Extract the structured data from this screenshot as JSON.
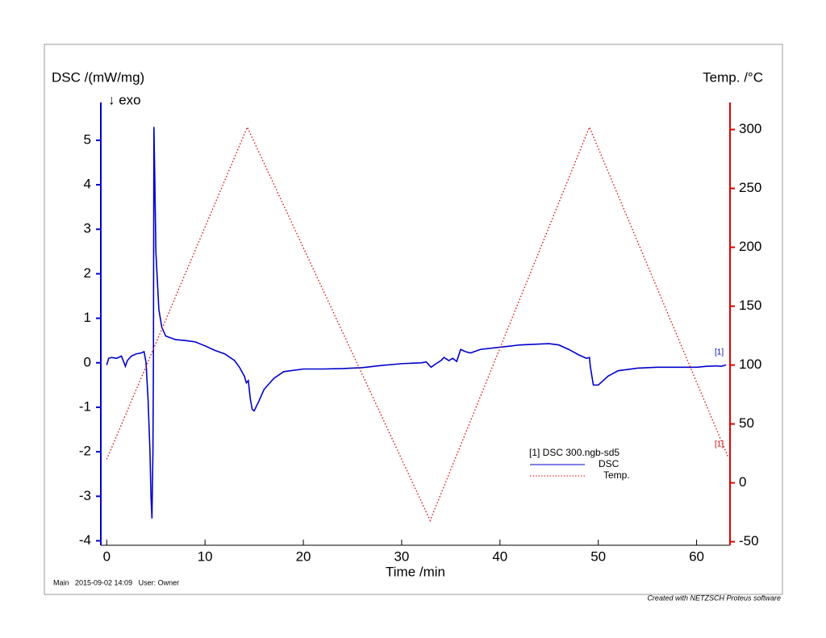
{
  "chart_data": {
    "type": "line",
    "y_label": "DSC /(mW/mg)",
    "y2_label": "Temp. /°C",
    "x_label": "Time /min",
    "annotation": "↓ exo",
    "legend_title": "[1] DSC 300.ngb-sd5",
    "curve_labels": [
      "[1]",
      "[1]"
    ],
    "footer": "Main   2015-09-02 14:09   User: Owner",
    "credit": "Created with NETZSCH Proteus software",
    "xlim": [
      -0.6,
      63.4
    ],
    "xticks": [
      0,
      10,
      20,
      30,
      40,
      50,
      60
    ],
    "ylim": [
      -4.1,
      5.85
    ],
    "yticks": [
      -4,
      -3,
      -2,
      -1,
      0,
      1,
      2,
      3,
      4,
      5
    ],
    "y2lim": [
      -53,
      323
    ],
    "y2ticks": [
      -50,
      0,
      50,
      100,
      150,
      200,
      250,
      300
    ],
    "series": [
      {
        "name": "DSC",
        "color": "#0000cc",
        "style": "solid",
        "x": [
          0,
          0.2,
          0.5,
          1,
          1.5,
          1.9,
          2.1,
          2.5,
          3,
          3.5,
          3.8,
          4.0,
          4.2,
          4.4,
          4.5,
          4.6,
          4.7,
          4.75,
          4.8,
          4.9,
          5.0,
          5.3,
          5.6,
          6,
          7,
          8,
          9,
          10,
          11,
          12,
          13,
          13.5,
          14,
          14.2,
          14.4,
          14.6,
          14.8,
          15,
          15.5,
          16,
          17,
          18,
          20,
          22,
          24,
          26,
          28,
          30,
          32,
          32.5,
          33,
          33.5,
          34,
          34.3,
          34.8,
          35.2,
          35.6,
          36,
          36.5,
          37,
          38,
          40,
          42,
          44,
          45,
          46,
          47,
          48,
          48.8,
          49.1,
          49.2,
          49.5,
          50,
          51,
          52,
          54,
          56,
          60,
          61,
          62,
          62.5,
          63
        ],
        "values": [
          -0.05,
          0.1,
          0.12,
          0.1,
          0.15,
          -0.08,
          0.05,
          0.15,
          0.2,
          0.22,
          0.25,
          0.0,
          -0.8,
          -2.0,
          -3.0,
          -3.5,
          -2.0,
          0,
          5.3,
          4.0,
          2.5,
          1.2,
          0.8,
          0.6,
          0.52,
          0.5,
          0.47,
          0.38,
          0.28,
          0.2,
          0.05,
          -0.1,
          -0.3,
          -0.45,
          -0.4,
          -0.8,
          -1.05,
          -1.08,
          -0.85,
          -0.6,
          -0.35,
          -0.2,
          -0.14,
          -0.14,
          -0.13,
          -0.11,
          -0.06,
          -0.02,
          0.0,
          0.02,
          -0.1,
          -0.02,
          0.05,
          0.12,
          0.05,
          0.1,
          0.03,
          0.3,
          0.25,
          0.22,
          0.3,
          0.35,
          0.4,
          0.42,
          0.43,
          0.4,
          0.3,
          0.18,
          0.1,
          0.12,
          -0.1,
          -0.5,
          -0.5,
          -0.3,
          -0.18,
          -0.12,
          -0.1,
          -0.1,
          -0.08,
          -0.07,
          -0.08,
          -0.05
        ]
      },
      {
        "name": "Temp.",
        "color": "#dd0000",
        "style": "dotted",
        "axis": "y2",
        "x": [
          0,
          14.3,
          32.9,
          49.1,
          63.2
        ],
        "values": [
          20,
          302,
          -32,
          302,
          22
        ]
      }
    ]
  }
}
